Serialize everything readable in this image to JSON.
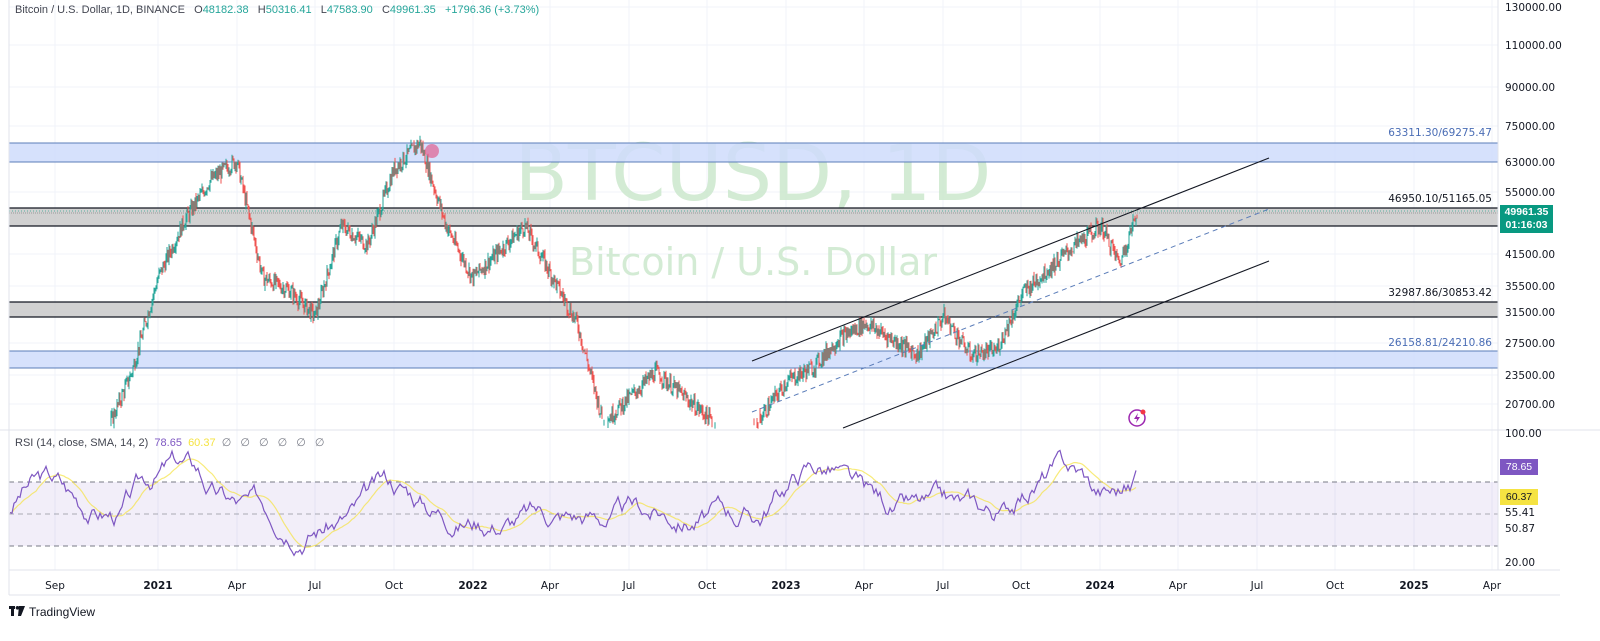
{
  "header": {
    "symbol_desc": "Bitcoin / U.S. Dollar, 1D, BINANCE",
    "open_label": "O",
    "open": "48182.38",
    "high_label": "H",
    "high": "50316.41",
    "low_label": "L",
    "low": "47583.90",
    "close_label": "C",
    "close": "49961.35",
    "change": "+1796.36 (+3.73%)"
  },
  "watermark": {
    "title": "BTCUSD, 1D",
    "subtitle": "Bitcoin / U.S. Dollar"
  },
  "price_tag": {
    "price": "49961.35",
    "countdown": "01:16:03"
  },
  "rsi": {
    "label": "RSI (14, close, SMA, 14, 2)",
    "value": "78.65",
    "sma_value": "60.37",
    "extra": "∅ ∅ ∅ ∅ ∅ ∅",
    "axis_labels": [
      "100.00",
      "20.00"
    ],
    "level_labels": [
      "55.41",
      "50.87"
    ],
    "bands": {
      "upper": 70,
      "middle": 50,
      "lower": 30
    }
  },
  "footer": {
    "brand": "TradingView"
  },
  "colors": {
    "up": "#26a69a",
    "down": "#ef5350",
    "blue_zone_fill": "#cfdcfb",
    "blue_zone_border": "#5b7db9",
    "gray_zone_fill": "#c9c9c9",
    "rsi_line": "#7e57c2",
    "rsi_sma": "#f5e342",
    "price_tag": "#089981",
    "watermark": "#c8e6c9"
  },
  "chart_data": {
    "type": "candlestick",
    "title": "Bitcoin / U.S. Dollar, 1D, BINANCE",
    "ohlc_last": {
      "open": 48182.38,
      "high": 50316.41,
      "low": 47583.9,
      "close": 49961.35,
      "change": 1796.36,
      "change_pct": 3.73
    },
    "y_axis": {
      "scale": "log",
      "ticks": [
        "130000.00",
        "110000.00",
        "90000.00",
        "75000.00",
        "63000.00",
        "55000.00",
        "41500.00",
        "35500.00",
        "31500.00",
        "27500.00",
        "23500.00",
        "20700.00"
      ]
    },
    "x_axis": {
      "ticks": [
        "Sep",
        "2021",
        "Apr",
        "Jul",
        "Oct",
        "2022",
        "Apr",
        "Jul",
        "Oct",
        "2023",
        "Apr",
        "Jul",
        "Oct",
        "2024",
        "Apr",
        "Jul",
        "Oct",
        "2025",
        "Apr"
      ]
    },
    "zones": [
      {
        "label": "63311.30/69275.47",
        "low": 63311.3,
        "high": 69275.47,
        "style": "blue"
      },
      {
        "label": "46950.10/51165.05",
        "low": 46950.1,
        "high": 51165.05,
        "style": "gray"
      },
      {
        "label": "32987.86/30853.42",
        "low": 30853.42,
        "high": 32987.86,
        "style": "gray"
      },
      {
        "label": "26158.81/24210.86",
        "low": 24210.86,
        "high": 26158.81,
        "style": "blue"
      }
    ],
    "price_path": [
      [
        "2020-08",
        11500
      ],
      [
        "2020-10",
        13500
      ],
      [
        "2020-12",
        24000
      ],
      [
        "2021-01",
        37000
      ],
      [
        "2021-02",
        48000
      ],
      [
        "2021-03",
        58000
      ],
      [
        "2021-04",
        63500
      ],
      [
        "2021-05",
        37000
      ],
      [
        "2021-06",
        35000
      ],
      [
        "2021-07",
        31000
      ],
      [
        "2021-08",
        47000
      ],
      [
        "2021-09",
        43000
      ],
      [
        "2021-10",
        61000
      ],
      [
        "2021-11",
        69000
      ],
      [
        "2021-12",
        47000
      ],
      [
        "2022-01",
        37000
      ],
      [
        "2022-03",
        47000
      ],
      [
        "2022-05",
        30000
      ],
      [
        "2022-06",
        19000
      ],
      [
        "2022-08",
        24000
      ],
      [
        "2022-10",
        19500
      ],
      [
        "2022-11",
        16500
      ],
      [
        "2023-01",
        23000
      ],
      [
        "2023-02",
        24500
      ],
      [
        "2023-03",
        28000
      ],
      [
        "2023-04",
        30000
      ],
      [
        "2023-06",
        26000
      ],
      [
        "2023-07",
        31000
      ],
      [
        "2023-08",
        26000
      ],
      [
        "2023-09",
        26500
      ],
      [
        "2023-10",
        34500
      ],
      [
        "2023-12",
        43000
      ],
      [
        "2024-01",
        47000
      ],
      [
        "2024-01-22",
        39500
      ],
      [
        "2024-02-12",
        49961.35
      ]
    ],
    "trend_channel": {
      "upper_line": "from ~Dec 2022 at ~25500 rising to ~Jul 2024 at ~63000",
      "middle_dashed": "from ~Dec 2022 at ~17500 rising to ~Jul 2024 at ~51000",
      "lower_line": "from ~Feb 2023 at ~16000 rising to ~Jul 2024 at ~40000"
    },
    "rsi_series": {
      "name": "RSI (14, close, SMA, 14, 2)",
      "last": 78.65,
      "sma_last": 60.37,
      "ylim": [
        20,
        100
      ],
      "levels": [
        70,
        50,
        30
      ]
    },
    "grid": true
  }
}
